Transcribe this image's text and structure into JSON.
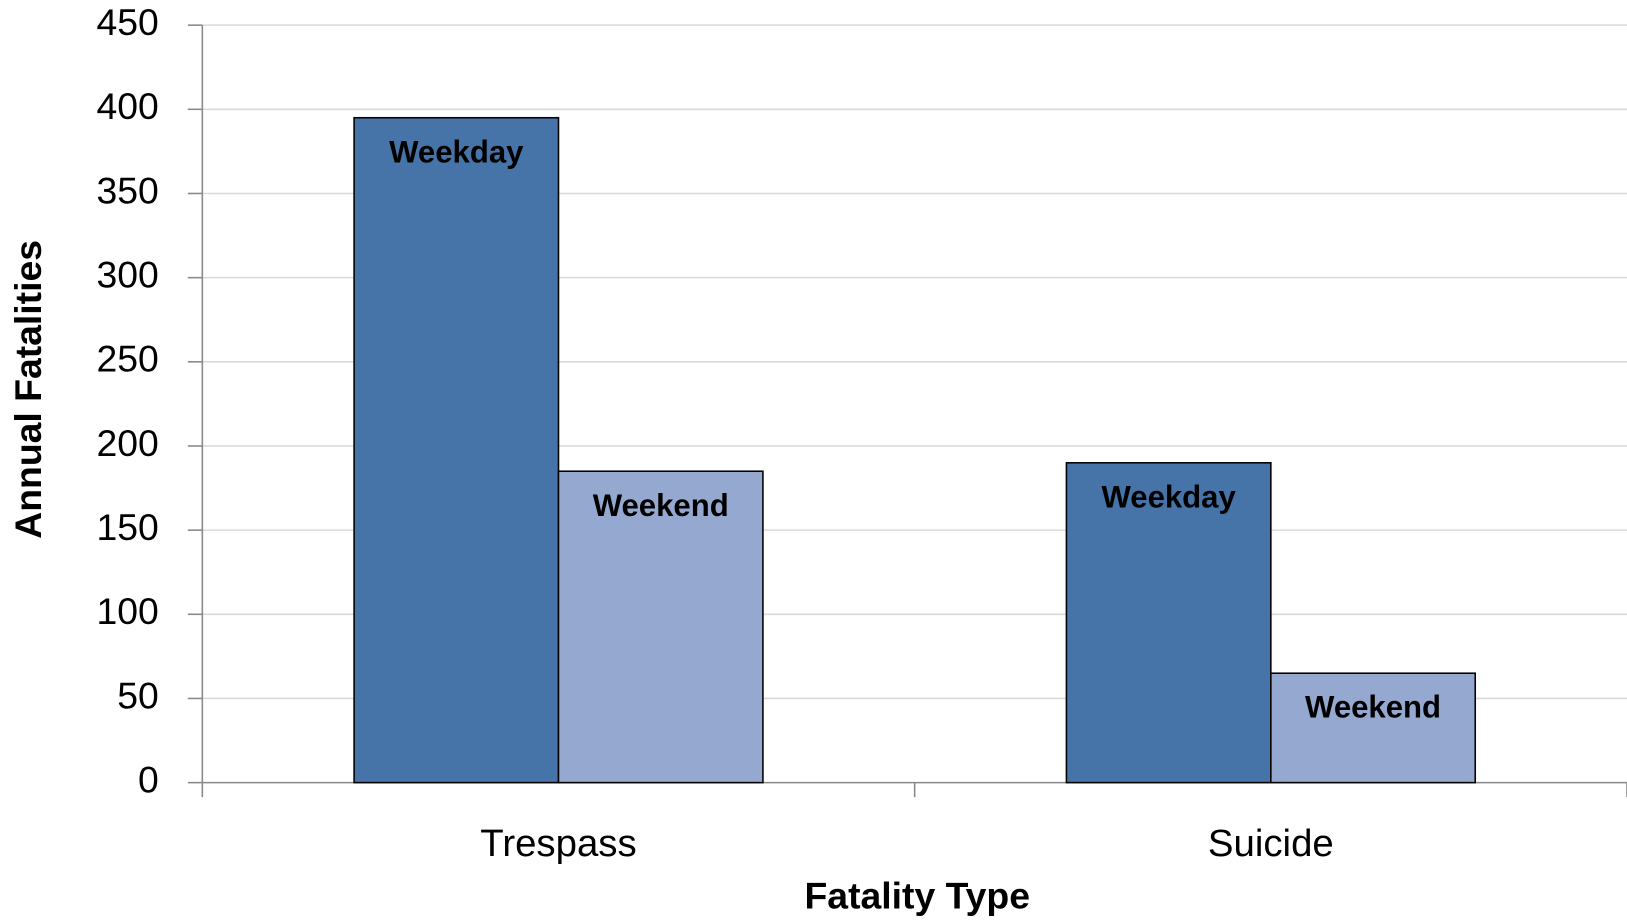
{
  "chart_data": {
    "type": "bar",
    "categories": [
      "Trespass",
      "Suicide"
    ],
    "series": [
      {
        "name": "Weekday",
        "color": "#4673a8",
        "values": [
          395,
          190
        ]
      },
      {
        "name": "Weekend",
        "color": "#95a9d0",
        "values": [
          185,
          65
        ]
      }
    ],
    "xlabel": "Fatality Type",
    "ylabel": "Annual Fatalities",
    "ylim": [
      0,
      450
    ],
    "yticks": [
      0,
      50,
      100,
      150,
      200,
      250,
      300,
      350,
      400,
      450
    ],
    "grid": true
  }
}
